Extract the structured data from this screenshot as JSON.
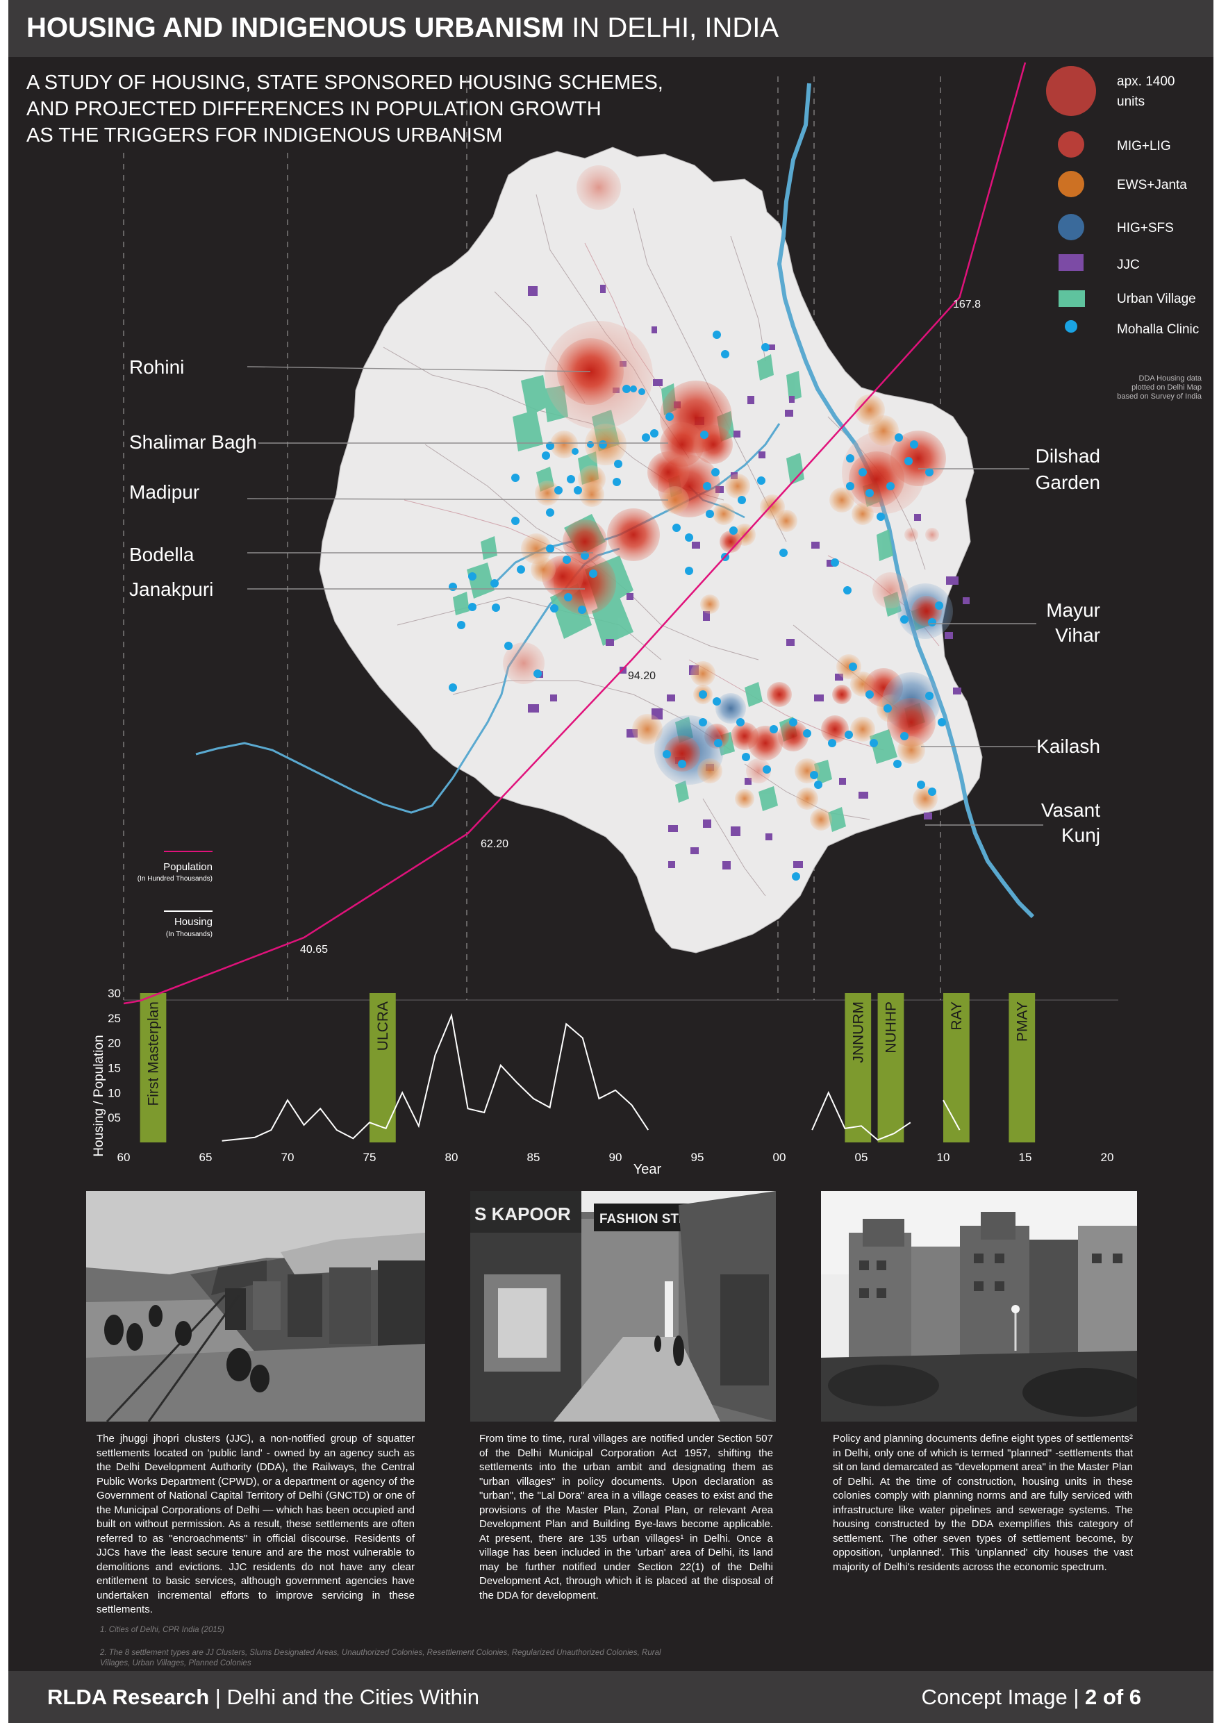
{
  "header": {
    "title_bold": "HOUSING AND INDIGENOUS URBANISM",
    "title_regular": "IN DELHI, INDIA"
  },
  "subtitle": {
    "line1": "A STUDY OF HOUSING, STATE SPONSORED HOUSING SCHEMES,",
    "line2": "AND PROJECTED DIFFERENCES IN POPULATION GROWTH",
    "line3": "AS THE TRIGGERS FOR INDIGENOUS URBANISM"
  },
  "legend": {
    "scale_label_line1": "apx. 1400",
    "scale_label_line2": "units",
    "items": [
      {
        "label": "MIG+LIG",
        "color": "#c9413b",
        "icon": "circle-icon"
      },
      {
        "label": "EWS+Janta",
        "color": "#e07a23",
        "icon": "circle-icon"
      },
      {
        "label": "HIG+SFS",
        "color": "#3d72a8",
        "icon": "circle-icon"
      },
      {
        "label": "JJC",
        "color": "#7c4ba5",
        "icon": "square-icon"
      },
      {
        "label": "Urban Village",
        "color": "#5fc39e",
        "icon": "square-icon"
      },
      {
        "label": "Mohalla Clinic",
        "color": "#1aa3e3",
        "icon": "dot-icon"
      }
    ],
    "source_line1": "DDA Housing data",
    "source_line2": "plotted on Delhi Map",
    "source_line3": "based on Survey of India"
  },
  "map_labels": {
    "rohini": "Rohini",
    "shalimar": "Shalimar Bagh",
    "madipur": "Madipur",
    "bodella": "Bodella",
    "janakpuri": "Janakpuri",
    "dilshad_1": "Dilshad",
    "dilshad_2": "Garden",
    "mayur_1": "Mayur",
    "mayur_2": "Vihar",
    "kailash": "Kailash",
    "vasant_1": "Vasant",
    "vasant_2": "Kunj"
  },
  "population_labels": {
    "p1": "40.65",
    "p2": "62.20",
    "p3": "94.20",
    "p4": "167.8"
  },
  "line_legend": {
    "population": "Population",
    "population_unit": "(In Hundred Thousands)",
    "housing": "Housing",
    "housing_unit": "(In Thousands)"
  },
  "chart_data": {
    "type": "line",
    "title": "",
    "xlabel": "Year",
    "ylabel": "Housing / Population",
    "ylim": [
      0,
      30
    ],
    "xlim": [
      1960,
      2020
    ],
    "y_ticks": [
      "05",
      "10",
      "15",
      "20",
      "25",
      "30"
    ],
    "x_ticks": [
      "60",
      "65",
      "70",
      "75",
      "80",
      "85",
      "90",
      "95",
      "00",
      "05",
      "10",
      "15",
      "20"
    ],
    "colors": {
      "population": "#e0127b",
      "housing": "#ffffff",
      "policy": "#7d9a2e"
    },
    "policies": [
      {
        "label": "First Masterplan",
        "start": 1961,
        "end": 1962.6
      },
      {
        "label": "ULCRA",
        "start": 1975,
        "end": 1976.6
      },
      {
        "label": "JNNURM",
        "start": 2004,
        "end": 2005.6
      },
      {
        "label": "NUHHP",
        "start": 2006,
        "end": 2007.6
      },
      {
        "label": "RAY",
        "start": 2010,
        "end": 2011.6
      },
      {
        "label": "PMAY",
        "start": 2014,
        "end": 2015.6
      }
    ],
    "series": [
      {
        "name": "Housing",
        "segments": [
          [
            [
              1966,
              0.3
            ],
            [
              1968,
              1.0
            ],
            [
              1969,
              2.5
            ],
            [
              1970,
              8.5
            ],
            [
              1971,
              3.5
            ],
            [
              1972,
              6.8
            ],
            [
              1973,
              2.5
            ],
            [
              1974,
              0.8
            ],
            [
              1975,
              4.0
            ],
            [
              1976,
              2.8
            ],
            [
              1977,
              10.0
            ],
            [
              1978,
              3.3
            ],
            [
              1979,
              17.5
            ],
            [
              1980,
              25.5
            ],
            [
              1981,
              6.8
            ],
            [
              1982,
              6.0
            ],
            [
              1983,
              15.5
            ],
            [
              1984,
              12.0
            ],
            [
              1985,
              8.8
            ],
            [
              1986,
              7.0
            ],
            [
              1987,
              23.8
            ],
            [
              1988,
              21.0
            ],
            [
              1989,
              8.8
            ],
            [
              1990,
              10.5
            ],
            [
              1991,
              7.5
            ],
            [
              1992,
              2.5
            ]
          ],
          [
            [
              2002,
              2.5
            ],
            [
              2003,
              10.0
            ],
            [
              2004,
              2.8
            ],
            [
              2005,
              3.3
            ],
            [
              2006,
              0.5
            ],
            [
              2007,
              1.8
            ],
            [
              2008,
              4.0
            ]
          ],
          [
            [
              2010,
              8.5
            ],
            [
              2011,
              2.5
            ]
          ]
        ]
      }
    ],
    "population": [
      {
        "year": 1960,
        "value": 26
      },
      {
        "year": 1961,
        "value": 26.6
      },
      {
        "year": 1971,
        "value": 40.65
      },
      {
        "year": 1981,
        "value": 62.2
      },
      {
        "year": 1991,
        "value": 94.2
      },
      {
        "year": 2011,
        "value": 167.8
      },
      {
        "year": 2015,
        "value": 245
      }
    ]
  },
  "captions": {
    "c1": "The jhuggi jhopri clusters (JJC), a non-notified group of squatter settlements located on 'public land' - owned by an agency such as the Delhi Development Authority (DDA), the Railways, the Central Public Works Department (CPWD), or a department or agency of the Government of National Capital Territory of Delhi (GNCTD) or one of the Municipal Corporations of Delhi — which has been occupied and built on without permission. As a result, these settlements are often referred to as \"encroachments\" in official discourse. Residents of JJCs have the least secure tenure and are the most vulnerable to demolitions and evictions. JJC residents do not have any clear entitlement to basic services, although government agencies have undertaken incremental efforts to improve servicing in these settlements.",
    "c2": "From time to time, rural villages are notified under Section 507 of the Delhi Municipal Corporation Act 1957, shifting the settlements into the urban ambit and designating them as \"urban villages\" in policy documents. Upon declaration as \"urban\", the \"Lal Dora\" area in a village ceases to exist and the provisions of the Master Plan, Zonal Plan, or relevant Area Development Plan and Building Bye-laws become applicable. At present, there are 135 urban villages¹ in Delhi. Once a village has been included in the 'urban' area of Delhi, its land may be further notified under Section 22(1) of the Delhi Development Act, through which it is placed at the disposal of the DDA for development.",
    "c3": "Policy and planning documents define eight types of settlements² in Delhi, only one of which is termed \"planned\" -settlements that sit on land demarcated as \"development area\" in the Master Plan of Delhi. At the time of construction, housing units in these colonies comply with planning norms and are fully serviced with infrastructure like water pipelines and sewerage systems. The housing constructed by the DDA exemplifies this category of settlement. The other seven types of settlement become, by opposition, 'unplanned'. This 'unplanned' city houses the vast majority of Delhi's residents across the economic spectrum."
  },
  "photos": {
    "p2_sign_left": "S KAPOOR",
    "p2_sign_right": "FASHION STREET"
  },
  "footnotes": {
    "f1": "1. Cities of Delhi, CPR India (2015)",
    "f2": "2. The 8 settlement types are JJ Clusters, Slums Designated Areas, Unauthorized Colonies, Resettlement Colonies, Regularized Unauthorized Colonies, Rural Villages, Urban Villages, Planned Colonies"
  },
  "footer": {
    "left_bold": "RLDA Research",
    "left_rest": "| Delhi and the Cities Within",
    "right_rest": "Concept Image |",
    "right_bold": "2 of 6"
  }
}
